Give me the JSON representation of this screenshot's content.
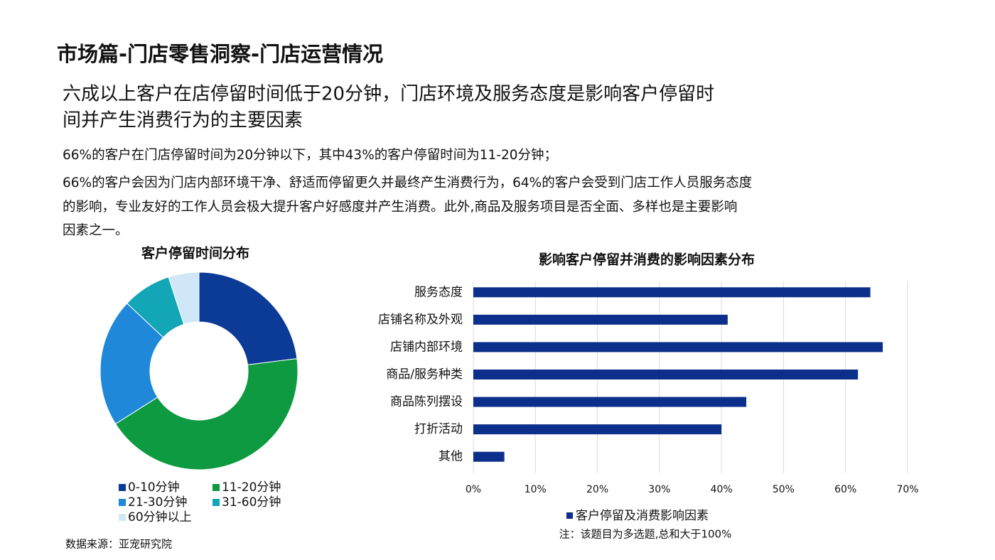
{
  "header": {
    "title": "市场篇-门店零售洞察-门店运营情况",
    "subtitle_lines": [
      "六成以上客户在店停留时间低于20分钟，门店环境及服务态度是影响客户停留时",
      "间并产生消费行为的主要因素"
    ]
  },
  "body_lines": [
    "66%的客户在门店停留时间为20分钟以下，其中43%的客户停留时间为11-20分钟；",
    "66%的客户会因为门店内部环境干净、舒适而停留更久并最终产生消费行为，64%的客户会受到门店工作人员服务态度",
    "的影响，专业友好的工作人员会极大提升客户好感度并产生消费。此外,商品及服务项目是否全面、多样也是主要影响",
    "因素之一。"
  ],
  "source": "数据来源：亚宠研究院",
  "chart_data": [
    {
      "type": "donut",
      "title": "客户停留时间分布",
      "categories": [
        "0-10分钟",
        "11-20分钟",
        "21-30分钟",
        "31-60分钟",
        "60分钟以上"
      ],
      "values": [
        23,
        43,
        21,
        8,
        5
      ],
      "colors": [
        "#0b3a97",
        "#0e9a40",
        "#1f88d8",
        "#13a6b6",
        "#cfe7f6"
      ]
    },
    {
      "type": "hbar",
      "title": "影响客户停留并消费的影响因素分布",
      "categories": [
        "服务态度",
        "店铺名称及外观",
        "店铺内部环境",
        "商品/服务种类",
        "商品陈列摆设",
        "打折活动",
        "其他"
      ],
      "series": [
        {
          "name": "客户停留及消费影响因素",
          "color": "#0b2f8a",
          "values": [
            64,
            41,
            66,
            62,
            44,
            40,
            5
          ]
        }
      ],
      "xlim": [
        0,
        70
      ],
      "xticks": [
        {
          "value": 0,
          "label": "0%"
        },
        {
          "value": 10,
          "label": "10%"
        },
        {
          "value": 20,
          "label": "20%"
        },
        {
          "value": 30,
          "label": "30%"
        },
        {
          "value": 40,
          "label": "40%"
        },
        {
          "value": 50,
          "label": "50%"
        },
        {
          "value": 60,
          "label": "60%"
        },
        {
          "value": 70,
          "label": "70%"
        }
      ],
      "grid": true,
      "note": "注：该题目为多选题,总和大于100%"
    }
  ]
}
